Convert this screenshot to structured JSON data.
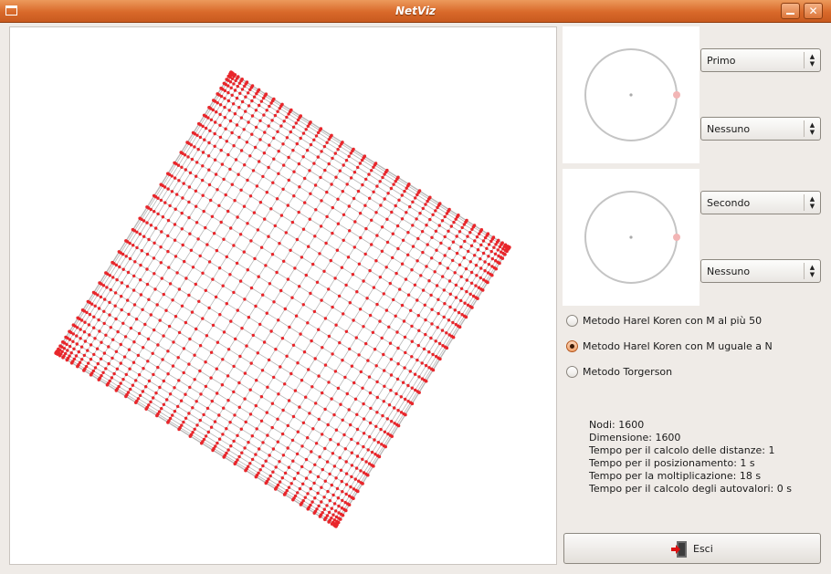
{
  "window": {
    "title": "NetViz"
  },
  "combos": {
    "first_primary": "Primo",
    "first_secondary": "Nessuno",
    "second_primary": "Secondo",
    "second_secondary": "Nessuno"
  },
  "methods": [
    {
      "label": "Metodo Harel Koren con M al più 50",
      "selected": false
    },
    {
      "label": "Metodo Harel Koren con M uguale a N",
      "selected": true
    },
    {
      "label": "Metodo Torgerson",
      "selected": false
    }
  ],
  "stats": {
    "nodes": "Nodi: 1600",
    "dimension": "Dimensione: 1600",
    "distance_time": "Tempo per il calcolo delle distanze: 1",
    "position_time": "Tempo per il posizionamento: 1 s",
    "multiplication_time": "Tempo per la moltiplicazione: 18 s",
    "eigen_time": "Tempo per il calcolo degli autovalori: 0 s"
  },
  "exit_button": {
    "label": "Esci",
    "icon": "exit-door-icon"
  },
  "graph": {
    "grid_size": 40,
    "node_count": 1600,
    "node_color": "#e8262b",
    "edge_color": "#b8b8b8"
  }
}
